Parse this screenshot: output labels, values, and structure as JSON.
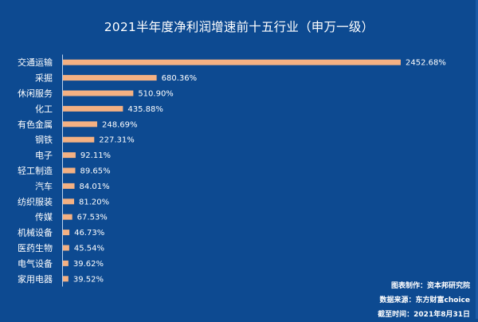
{
  "chart_data": {
    "type": "bar",
    "orientation": "horizontal",
    "title": "2021半年度净利润增速前十五行业（申万一级）",
    "categories": [
      "交通运输",
      "采掘",
      "休闲服务",
      "化工",
      "有色金属",
      "钢铁",
      "电子",
      "轻工制造",
      "汽车",
      "纺织服装",
      "传媒",
      "机械设备",
      "医药生物",
      "电气设备",
      "家用电器"
    ],
    "values": [
      2452.68,
      680.36,
      510.9,
      435.88,
      248.69,
      227.31,
      92.11,
      89.65,
      84.01,
      81.2,
      67.53,
      46.73,
      45.54,
      39.62,
      39.52
    ],
    "labels": [
      "2452.68%",
      "680.36%",
      "510.90%",
      "435.88%",
      "248.69%",
      "227.31%",
      "92.11%",
      "89.65%",
      "84.01%",
      "81.20%",
      "67.53%",
      "46.73%",
      "45.54%",
      "39.62%",
      "39.52%"
    ],
    "xlabel": "",
    "ylabel": "",
    "xlim": [
      0,
      2452.68
    ],
    "grid": false,
    "legend": "none",
    "bar_color": "#f4b183",
    "background_color": "#0d4a91"
  },
  "notes": {
    "made_by": "图表制作：资本邦研究院",
    "source": "数据来源：东方财富choice",
    "as_of": "截至时间：2021年8月31日"
  }
}
